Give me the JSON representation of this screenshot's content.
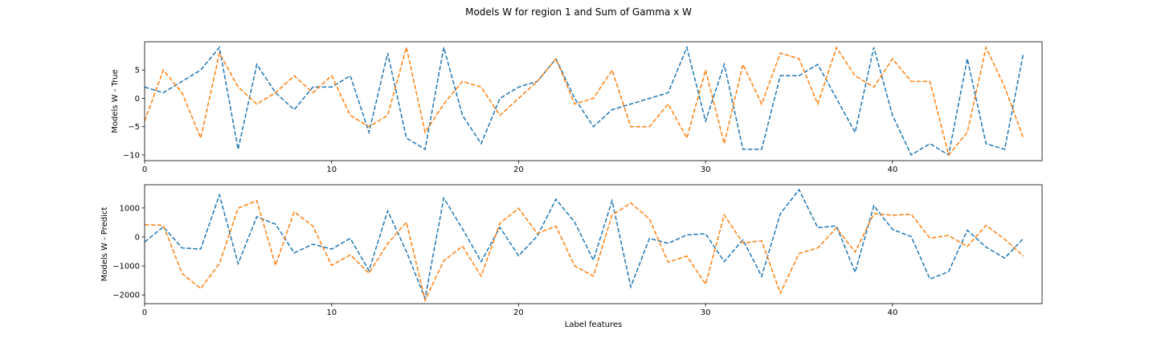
{
  "figure_title": "Models W for region 1 and Sum of Gamma x W",
  "colors": {
    "series_1": "#1f77b4",
    "series_2": "#ff7f0e"
  },
  "chart_data": [
    {
      "type": "line",
      "line_style": "dashed",
      "title": "",
      "xlabel": "",
      "ylabel": "Models W - True",
      "xlim": [
        0,
        48
      ],
      "ylim": [
        -11,
        10
      ],
      "xticks": [
        0,
        10,
        20,
        30,
        40
      ],
      "yticks": [
        -10,
        -5,
        0,
        5
      ],
      "grid": false,
      "x": [
        0,
        1,
        2,
        3,
        4,
        5,
        6,
        7,
        8,
        9,
        10,
        11,
        12,
        13,
        14,
        15,
        16,
        17,
        18,
        19,
        20,
        21,
        22,
        23,
        24,
        25,
        26,
        27,
        28,
        29,
        30,
        31,
        32,
        33,
        34,
        35,
        36,
        37,
        38,
        39,
        40,
        41,
        42,
        43,
        44,
        45,
        46,
        47
      ],
      "series": [
        {
          "color": "#1f77b4",
          "values": [
            2,
            1,
            3,
            5,
            9,
            -9,
            6,
            1,
            -2,
            2,
            2,
            4,
            -6,
            8,
            -7,
            -9,
            9,
            -3,
            -8,
            0,
            2,
            3,
            7,
            0,
            -5,
            -2,
            -1,
            0,
            1,
            9,
            -4,
            6,
            -9,
            -9,
            4,
            4,
            6,
            0,
            -6,
            9,
            -3,
            -10,
            -8,
            -10,
            7,
            -8,
            -9,
            8
          ]
        },
        {
          "color": "#ff7f0e",
          "values": [
            -4,
            5,
            1,
            -7,
            8,
            2,
            -1,
            1,
            4,
            1,
            4,
            -3,
            -5,
            -3,
            9,
            -6,
            -1,
            3,
            2,
            -3,
            0,
            3,
            7,
            -1,
            0,
            5,
            -5,
            -5,
            -1,
            -7,
            5,
            -8,
            6,
            -1,
            8,
            7,
            -1,
            9,
            4,
            2,
            7,
            3,
            3,
            -10,
            -6,
            9,
            2,
            -7
          ]
        }
      ]
    },
    {
      "type": "line",
      "line_style": "dashed",
      "title": "",
      "xlabel": "Label features",
      "ylabel": "Models W - Predict",
      "xlim": [
        0,
        48
      ],
      "ylim": [
        -2300,
        1800
      ],
      "xticks": [
        0,
        10,
        20,
        30,
        40
      ],
      "yticks": [
        -2000,
        -1000,
        0,
        1000
      ],
      "grid": false,
      "x": [
        0,
        1,
        2,
        3,
        4,
        5,
        6,
        7,
        8,
        9,
        10,
        11,
        12,
        13,
        14,
        15,
        16,
        17,
        18,
        19,
        20,
        21,
        22,
        23,
        24,
        25,
        26,
        27,
        28,
        29,
        30,
        31,
        32,
        33,
        34,
        35,
        36,
        37,
        38,
        39,
        40,
        41,
        42,
        43,
        44,
        45,
        46,
        47
      ],
      "series": [
        {
          "color": "#1f77b4",
          "values": [
            -180,
            350,
            -380,
            -420,
            1450,
            -920,
            700,
            440,
            -550,
            -250,
            -420,
            -50,
            -1160,
            900,
            -500,
            -2120,
            1340,
            280,
            -850,
            330,
            -650,
            30,
            1300,
            510,
            -800,
            1250,
            -1720,
            -50,
            -220,
            70,
            110,
            -850,
            -100,
            -1360,
            800,
            1630,
            320,
            380,
            -1220,
            1080,
            260,
            10,
            -1450,
            -1200,
            230,
            -350,
            -730,
            -50
          ]
        },
        {
          "color": "#ff7f0e",
          "values": [
            420,
            400,
            -1260,
            -1780,
            -920,
            990,
            1250,
            -980,
            870,
            370,
            -980,
            -620,
            -1250,
            -230,
            510,
            -2180,
            -820,
            -320,
            -1350,
            470,
            990,
            120,
            370,
            -1000,
            -1350,
            750,
            1170,
            620,
            -870,
            -660,
            -1630,
            760,
            -210,
            -130,
            -1940,
            -570,
            -380,
            310,
            -520,
            800,
            750,
            780,
            -40,
            50,
            -330,
            400,
            -80,
            -660
          ]
        }
      ]
    }
  ]
}
